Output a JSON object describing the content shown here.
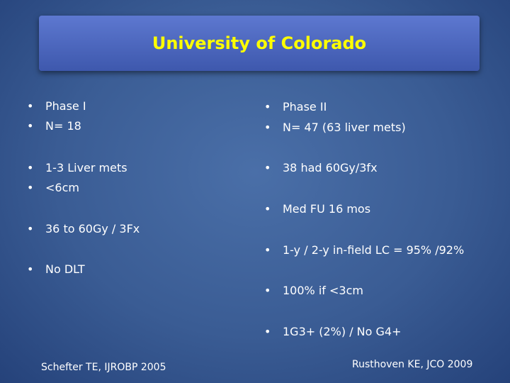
{
  "title": "University of Colorado",
  "left": {
    "bullets": [
      "Phase I",
      "N= 18",
      "1-3 Liver mets",
      "<6cm",
      "36 to 60Gy / 3Fx",
      "No DLT"
    ],
    "citation": "Schefter TE, IJROBP 2005"
  },
  "right": {
    "bullets": [
      "Phase II",
      "N= 47 (63 liver mets)",
      "38 had 60Gy/3fx",
      "Med FU 16 mos",
      "1-y / 2-y in-field LC = 95% /92%",
      "100% if <3cm",
      "1G3+ (2%) / No G4+"
    ],
    "citation": "Rusthoven KE, JCO 2009"
  }
}
